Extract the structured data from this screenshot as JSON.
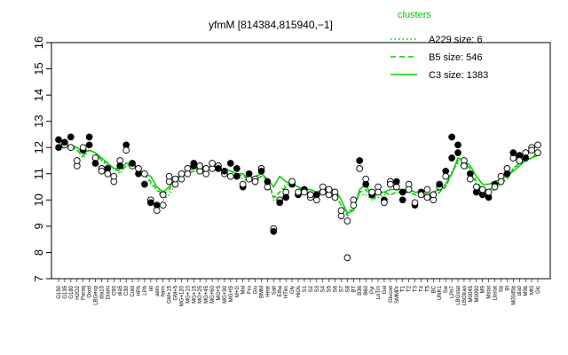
{
  "chart_data": {
    "type": "line",
    "title": "yfmM [814384,815940,−1]",
    "ylim": [
      7,
      16
    ],
    "yticks": [
      7,
      8,
      9,
      10,
      11,
      12,
      13,
      14,
      15,
      16
    ],
    "legend": {
      "title": "clusters",
      "placement": "top-right",
      "entries": [
        {
          "label": "A229 size: 6",
          "style": "dotted"
        },
        {
          "label": "B5 size: 546",
          "style": "dashed"
        },
        {
          "label": "C3 size: 1383",
          "style": "solid"
        }
      ]
    },
    "x_labels": [
      "G150",
      "G135",
      "G180",
      "H2O2",
      "Paraq",
      "Oxctl",
      "LBGexp",
      "dia15",
      "Diami",
      "C90",
      "dia5",
      "C30",
      "Cold",
      "HPh",
      "LPh",
      "nit",
      "aero",
      "ferm",
      "GM+15",
      "GM+5",
      "MG+120",
      "MG+10",
      "MG+15",
      "MG+25",
      "MG+45",
      "MG+60",
      "MG+5",
      "MG+90",
      "MG+t5",
      "M+G",
      "Mal",
      "Fru",
      "Glu",
      "BMM",
      "Heat",
      "Salt",
      "Etha",
      "HTim",
      "Gly",
      "HiOs",
      "S1",
      "S2",
      "S3",
      "S4",
      "S5",
      "S6",
      "S7",
      "S8",
      "BT",
      "B36",
      "B60",
      "Pyr",
      "LoTm",
      "Gal",
      "Glucon",
      "SMMPr",
      "T1",
      "T2",
      "T3",
      "T4",
      "T5",
      "BC",
      "UNK1",
      "Sw",
      "LPh7",
      "LBGstat",
      "LBGtran",
      "M0045",
      "M0090",
      "M9",
      "Mstat",
      "Lbstat",
      "Sb",
      "BI",
      "M0045b",
      "dia0",
      "M9b",
      "Mt0",
      "Glc"
    ],
    "series": [
      {
        "name": "A229 size: 6",
        "color": "#00cc00",
        "style": "dotted",
        "values": [
          12.0,
          12.0,
          12.1,
          11.9,
          11.6,
          11.9,
          11.8,
          11.5,
          11.3,
          11.2,
          11.0,
          11.3,
          11.4,
          11.1,
          11.0,
          10.6,
          10.4,
          10.0,
          10.2,
          10.6,
          10.9,
          11.0,
          11.1,
          11.1,
          11.2,
          11.2,
          11.1,
          11.2,
          11.1,
          11.0,
          10.8,
          10.7,
          10.8,
          10.9,
          10.8,
          10.0,
          10.3,
          10.6,
          10.6,
          10.5,
          10.3,
          10.3,
          10.2,
          10.3,
          10.3,
          10.2,
          9.8,
          9.5,
          9.8,
          10.2,
          10.2,
          10.0,
          10.1,
          10.2,
          10.2,
          10.3,
          10.3,
          10.3,
          10.2,
          10.2,
          10.1,
          10.1,
          10.3,
          10.6,
          11.1,
          11.4,
          11.3,
          11.1,
          10.6,
          10.4,
          10.3,
          10.4,
          10.6,
          10.8,
          11.2,
          11.4,
          11.5,
          11.6,
          11.7
        ]
      },
      {
        "name": "B5 size: 546",
        "color": "#00cc00",
        "style": "dashed",
        "values": [
          12.1,
          12.0,
          12.1,
          11.9,
          11.7,
          11.9,
          11.8,
          11.5,
          11.4,
          11.2,
          11.1,
          11.3,
          11.4,
          11.2,
          11.0,
          10.7,
          10.4,
          10.2,
          10.4,
          10.7,
          10.9,
          11.0,
          11.1,
          11.2,
          11.2,
          11.2,
          11.1,
          11.2,
          11.1,
          11.0,
          10.9,
          10.8,
          10.8,
          10.9,
          10.8,
          10.1,
          10.3,
          10.5,
          10.6,
          10.5,
          10.3,
          10.3,
          10.3,
          10.3,
          10.3,
          10.2,
          9.8,
          9.4,
          9.7,
          10.3,
          10.4,
          10.0,
          10.2,
          10.3,
          10.2,
          10.3,
          10.3,
          10.3,
          10.2,
          10.2,
          10.1,
          10.1,
          10.3,
          10.5,
          11.0,
          11.5,
          11.4,
          11.2,
          10.7,
          10.4,
          10.4,
          10.5,
          10.7,
          10.8,
          11.2,
          11.4,
          11.5,
          11.6,
          11.7
        ]
      },
      {
        "name": "C3 size: 1383",
        "color": "#00cc00",
        "style": "solid",
        "values": [
          12.2,
          12.0,
          12.1,
          12.0,
          11.8,
          11.9,
          11.8,
          11.6,
          11.4,
          11.2,
          11.2,
          11.4,
          11.4,
          11.2,
          11.0,
          10.9,
          10.5,
          10.3,
          10.5,
          10.8,
          11.0,
          11.1,
          11.2,
          11.2,
          11.2,
          11.2,
          11.1,
          11.2,
          11.1,
          11.0,
          11.0,
          10.8,
          10.9,
          11.0,
          10.8,
          10.5,
          10.9,
          10.7,
          10.6,
          10.5,
          10.4,
          10.4,
          10.3,
          10.4,
          10.4,
          10.4,
          10.0,
          9.5,
          9.6,
          10.4,
          10.6,
          10.1,
          10.3,
          10.3,
          10.4,
          10.4,
          10.4,
          10.4,
          10.3,
          10.3,
          10.2,
          10.3,
          10.4,
          10.6,
          11.0,
          11.6,
          11.5,
          11.3,
          10.9,
          10.6,
          10.6,
          10.7,
          10.8,
          10.9,
          11.1,
          11.3,
          11.5,
          11.6,
          11.8
        ]
      }
    ],
    "points": [
      [
        0,
        12.0
      ],
      [
        0,
        12.3
      ],
      [
        1,
        12.1
      ],
      [
        1,
        12.2
      ],
      [
        2,
        12.0
      ],
      [
        2,
        12.4
      ],
      [
        3,
        11.3
      ],
      [
        3,
        11.5
      ],
      [
        4,
        11.9
      ],
      [
        4,
        12.0
      ],
      [
        5,
        12.4
      ],
      [
        5,
        12.1
      ],
      [
        6,
        11.6
      ],
      [
        6,
        11.4
      ],
      [
        7,
        11.2
      ],
      [
        7,
        11.1
      ],
      [
        8,
        11.2
      ],
      [
        8,
        11.0
      ],
      [
        9,
        10.7
      ],
      [
        9,
        10.9
      ],
      [
        10,
        11.5
      ],
      [
        10,
        11.3
      ],
      [
        11,
        12.1
      ],
      [
        11,
        11.9
      ],
      [
        12,
        11.3
      ],
      [
        12,
        11.4
      ],
      [
        13,
        11.0
      ],
      [
        13,
        11.2
      ],
      [
        14,
        10.6
      ],
      [
        14,
        11.0
      ],
      [
        15,
        10.0
      ],
      [
        15,
        9.9
      ],
      [
        16,
        9.8
      ],
      [
        16,
        9.6
      ],
      [
        17,
        10.2
      ],
      [
        17,
        9.8
      ],
      [
        18,
        10.7
      ],
      [
        18,
        10.9
      ],
      [
        19,
        10.6
      ],
      [
        19,
        10.8
      ],
      [
        20,
        10.8
      ],
      [
        20,
        11.0
      ],
      [
        21,
        11.2
      ],
      [
        21,
        11.0
      ],
      [
        22,
        11.4
      ],
      [
        22,
        11.3
      ],
      [
        23,
        11.1
      ],
      [
        23,
        11.3
      ],
      [
        24,
        11.0
      ],
      [
        24,
        11.2
      ],
      [
        25,
        11.2
      ],
      [
        25,
        11.4
      ],
      [
        26,
        11.3
      ],
      [
        26,
        11.2
      ],
      [
        27,
        11.0
      ],
      [
        27,
        11.1
      ],
      [
        28,
        11.4
      ],
      [
        28,
        10.9
      ],
      [
        29,
        11.2
      ],
      [
        29,
        10.9
      ],
      [
        30,
        10.5
      ],
      [
        30,
        10.6
      ],
      [
        31,
        10.8
      ],
      [
        31,
        11.0
      ],
      [
        32,
        10.8
      ],
      [
        32,
        10.7
      ],
      [
        33,
        11.2
      ],
      [
        33,
        11.1
      ],
      [
        34,
        10.5
      ],
      [
        34,
        10.7
      ],
      [
        35,
        8.9
      ],
      [
        35,
        8.8
      ],
      [
        36,
        10.0
      ],
      [
        36,
        9.9
      ],
      [
        37,
        10.3
      ],
      [
        37,
        10.1
      ],
      [
        38,
        10.6
      ],
      [
        38,
        10.7
      ],
      [
        39,
        10.2
      ],
      [
        39,
        10.3
      ],
      [
        40,
        10.4
      ],
      [
        40,
        10.3
      ],
      [
        41,
        10.1
      ],
      [
        41,
        10.2
      ],
      [
        42,
        10.0
      ],
      [
        42,
        10.2
      ],
      [
        43,
        10.5
      ],
      [
        43,
        10.3
      ],
      [
        44,
        10.2
      ],
      [
        44,
        10.4
      ],
      [
        45,
        10.3
      ],
      [
        45,
        10.1
      ],
      [
        46,
        9.4
      ],
      [
        46,
        9.6
      ],
      [
        47,
        7.8
      ],
      [
        47,
        9.2
      ],
      [
        48,
        10.0
      ],
      [
        48,
        9.8
      ],
      [
        49,
        11.5
      ],
      [
        49,
        11.2
      ],
      [
        50,
        10.8
      ],
      [
        50,
        10.6
      ],
      [
        51,
        10.2
      ],
      [
        51,
        10.3
      ],
      [
        52,
        10.5
      ],
      [
        52,
        10.3
      ],
      [
        53,
        10.0
      ],
      [
        53,
        9.9
      ],
      [
        54,
        10.7
      ],
      [
        54,
        10.6
      ],
      [
        55,
        10.5
      ],
      [
        55,
        10.7
      ],
      [
        56,
        10.0
      ],
      [
        56,
        10.3
      ],
      [
        57,
        10.6
      ],
      [
        57,
        10.4
      ],
      [
        58,
        9.8
      ],
      [
        58,
        9.9
      ],
      [
        59,
        10.3
      ],
      [
        59,
        10.2
      ],
      [
        60,
        10.4
      ],
      [
        60,
        10.1
      ],
      [
        61,
        10.0
      ],
      [
        61,
        10.2
      ],
      [
        62,
        10.5
      ],
      [
        62,
        10.6
      ],
      [
        63,
        11.1
      ],
      [
        63,
        10.9
      ],
      [
        64,
        11.6
      ],
      [
        64,
        12.4
      ],
      [
        65,
        11.8
      ],
      [
        65,
        12.1
      ],
      [
        66,
        11.5
      ],
      [
        66,
        11.3
      ],
      [
        67,
        11.0
      ],
      [
        67,
        10.8
      ],
      [
        68,
        10.3
      ],
      [
        68,
        10.5
      ],
      [
        69,
        10.2
      ],
      [
        69,
        10.4
      ],
      [
        70,
        10.1
      ],
      [
        70,
        10.3
      ],
      [
        71,
        10.6
      ],
      [
        71,
        10.5
      ],
      [
        72,
        10.9
      ],
      [
        72,
        10.7
      ],
      [
        73,
        11.2
      ],
      [
        73,
        11.0
      ],
      [
        74,
        11.6
      ],
      [
        74,
        11.8
      ],
      [
        75,
        11.7
      ],
      [
        75,
        11.5
      ],
      [
        76,
        11.8
      ],
      [
        76,
        11.6
      ],
      [
        77,
        12.0
      ],
      [
        77,
        11.9
      ],
      [
        78,
        12.1
      ],
      [
        78,
        11.8
      ]
    ],
    "highlight_points": [
      [
        0,
        12.3
      ],
      [
        2,
        12.4
      ],
      [
        5,
        12.4
      ],
      [
        11,
        12.1
      ],
      [
        22,
        11.4
      ],
      [
        28,
        11.4
      ],
      [
        49,
        11.5
      ],
      [
        64,
        12.4
      ],
      [
        65,
        12.1
      ]
    ]
  }
}
